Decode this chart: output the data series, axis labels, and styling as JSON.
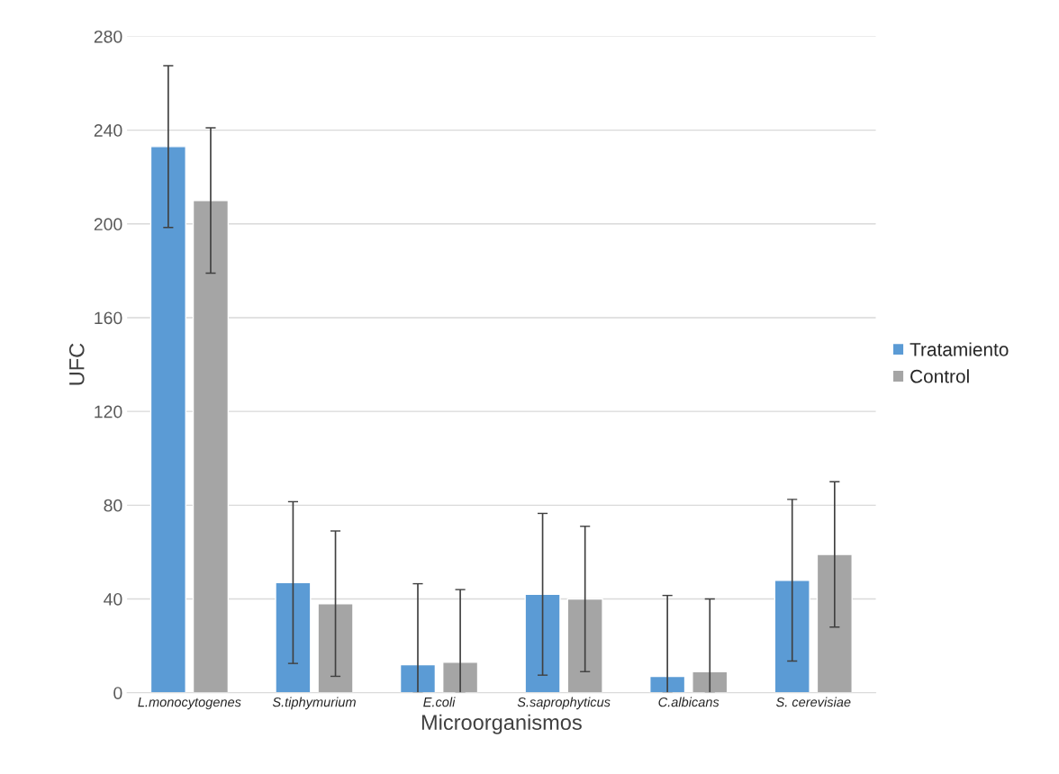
{
  "chart_data": {
    "type": "bar",
    "xlabel": "Microorganismos",
    "ylabel": "UFC",
    "categories": [
      "L.monocytogenes",
      "S.tiphymurium",
      "E.coli",
      "S.saprophyticus",
      "C.albicans",
      "S. cerevisiae"
    ],
    "series": [
      {
        "name": "Tratamiento",
        "color": "#5b9bd5",
        "values": [
          233,
          47,
          12,
          42,
          7,
          48
        ],
        "errors": [
          34.5,
          34.5,
          [
            0,
            46.5
          ],
          34.5,
          [
            0,
            41.5
          ],
          34.5
        ]
      },
      {
        "name": "Control",
        "color": "#a5a5a5",
        "values": [
          210,
          38,
          13,
          40,
          9,
          59
        ],
        "errors": [
          31,
          31,
          [
            0,
            44
          ],
          31,
          [
            0,
            40
          ],
          31
        ]
      }
    ],
    "ylim": [
      0,
      280
    ],
    "yticks": [
      0,
      40,
      80,
      120,
      160,
      200,
      240,
      280
    ],
    "grid": "y",
    "legend": "right"
  }
}
